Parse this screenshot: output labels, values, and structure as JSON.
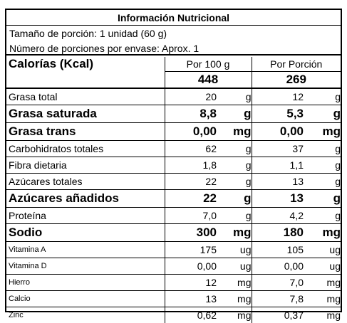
{
  "label": {
    "title": "Información Nutricional",
    "serving_size": "Tamaño de porción: 1 unidad (60 g)",
    "servings_per_container": "Número de porciones por envase: Aprox. 1",
    "calories_label": "Calorías (Kcal)",
    "col_per100_header": "Por 100 g",
    "col_serving_header": "Por Porción",
    "calories_per100": "448",
    "calories_serving": "269"
  },
  "nutrients": [
    {
      "name": "Grasa total",
      "v100": "20",
      "u100": "g",
      "vps": "12",
      "ups": "g"
    },
    {
      "name": "Grasa saturada",
      "v100": "8,8",
      "u100": "g",
      "vps": "5,3",
      "ups": "g"
    },
    {
      "name": "Grasa trans",
      "v100": "0,00",
      "u100": "mg",
      "vps": "0,00",
      "ups": "mg"
    },
    {
      "name": "Carbohidratos totales",
      "v100": "62",
      "u100": "g",
      "vps": "37",
      "ups": "g"
    },
    {
      "name": "Fibra dietaria",
      "v100": "1,8",
      "u100": "g",
      "vps": "1,1",
      "ups": "g"
    },
    {
      "name": "Azúcares totales",
      "v100": "22",
      "u100": "g",
      "vps": "13",
      "ups": "g"
    },
    {
      "name": "Azúcares añadidos",
      "v100": "22",
      "u100": "g",
      "vps": "13",
      "ups": "g"
    },
    {
      "name": "Proteína",
      "v100": "7,0",
      "u100": "g",
      "vps": "4,2",
      "ups": "g"
    },
    {
      "name": "Sodio",
      "v100": "300",
      "u100": "mg",
      "vps": "180",
      "ups": "mg"
    },
    {
      "name": "Vitamina A",
      "v100": "175",
      "u100": "ug",
      "vps": "105",
      "ups": "ug"
    },
    {
      "name": "Vitamina D",
      "v100": "0,00",
      "u100": "ug",
      "vps": "0,00",
      "ups": "ug"
    },
    {
      "name": "Hierro",
      "v100": "12",
      "u100": "mg",
      "vps": "7,0",
      "ups": "mg"
    },
    {
      "name": "Calcio",
      "v100": "13",
      "u100": "mg",
      "vps": "7,8",
      "ups": "mg"
    },
    {
      "name": "Zinc",
      "v100": "0,62",
      "u100": "mg",
      "vps": "0,37",
      "ups": "mg"
    }
  ]
}
